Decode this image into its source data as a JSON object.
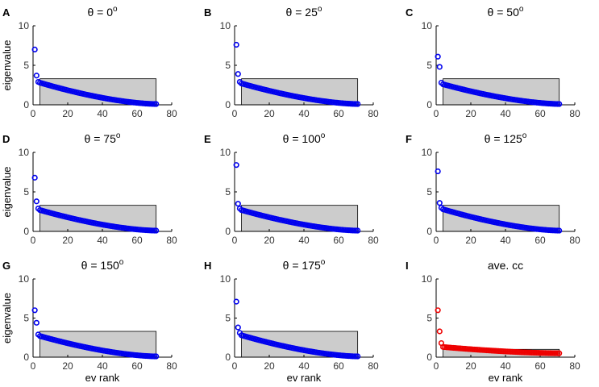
{
  "figure": {
    "ylabel": "eigenvalue",
    "xlabel": "ev rank"
  },
  "chart_data": [
    {
      "panel": "A",
      "type": "scatter",
      "title_symbol": "θ",
      "title_value": "0",
      "title_unit": "o",
      "title": "θ = 0°",
      "xlabel": "",
      "ylabel": "eigenvalue",
      "xlim": [
        0,
        80
      ],
      "ylim": [
        0,
        10
      ],
      "xticks": [
        "0",
        "20",
        "40",
        "60",
        "80"
      ],
      "yticks": [
        "0",
        "5",
        "10"
      ],
      "top_values": [
        7.0,
        3.7,
        2.9
      ],
      "bulk_start": 2.8,
      "bulk_end": 0.1,
      "n": 71,
      "marker_color": "#0000ee",
      "box": {
        "x0": 4,
        "x1": 71,
        "y0": 0,
        "y1": 3.3
      }
    },
    {
      "panel": "B",
      "type": "scatter",
      "title_symbol": "θ",
      "title_value": "25",
      "title_unit": "o",
      "title": "θ = 25°",
      "xlabel": "",
      "ylabel": "",
      "xlim": [
        0,
        80
      ],
      "ylim": [
        0,
        10
      ],
      "xticks": [
        "0",
        "20",
        "40",
        "60",
        "80"
      ],
      "yticks": [
        "0",
        "5",
        "10"
      ],
      "top_values": [
        7.6,
        3.9,
        2.9
      ],
      "bulk_start": 2.7,
      "bulk_end": 0.1,
      "n": 71,
      "marker_color": "#0000ee",
      "box": {
        "x0": 4,
        "x1": 71,
        "y0": 0,
        "y1": 3.3
      }
    },
    {
      "panel": "C",
      "type": "scatter",
      "title_symbol": "θ",
      "title_value": "50",
      "title_unit": "o",
      "title": "θ = 50°",
      "xlabel": "",
      "ylabel": "",
      "xlim": [
        0,
        80
      ],
      "ylim": [
        0,
        10
      ],
      "xticks": [
        "0",
        "20",
        "40",
        "60",
        "80"
      ],
      "yticks": [
        "0",
        "5",
        "10"
      ],
      "top_values": [
        6.1,
        4.8,
        2.8
      ],
      "bulk_start": 2.6,
      "bulk_end": 0.1,
      "n": 71,
      "marker_color": "#0000ee",
      "box": {
        "x0": 4,
        "x1": 71,
        "y0": 0,
        "y1": 3.3
      }
    },
    {
      "panel": "D",
      "type": "scatter",
      "title_symbol": "θ",
      "title_value": "75",
      "title_unit": "o",
      "title": "θ = 75°",
      "xlabel": "",
      "ylabel": "eigenvalue",
      "xlim": [
        0,
        80
      ],
      "ylim": [
        0,
        10
      ],
      "xticks": [
        "0",
        "20",
        "40",
        "60",
        "80"
      ],
      "yticks": [
        "0",
        "5",
        "10"
      ],
      "top_values": [
        6.8,
        3.8,
        2.9
      ],
      "bulk_start": 2.7,
      "bulk_end": 0.1,
      "n": 71,
      "marker_color": "#0000ee",
      "box": {
        "x0": 4,
        "x1": 71,
        "y0": 0,
        "y1": 3.3
      }
    },
    {
      "panel": "E",
      "type": "scatter",
      "title_symbol": "θ",
      "title_value": "100",
      "title_unit": "o",
      "title": "θ = 100°",
      "xlabel": "",
      "ylabel": "",
      "xlim": [
        0,
        80
      ],
      "ylim": [
        0,
        10
      ],
      "xticks": [
        "0",
        "20",
        "40",
        "60",
        "80"
      ],
      "yticks": [
        "0",
        "5",
        "10"
      ],
      "top_values": [
        8.4,
        3.5,
        2.9
      ],
      "bulk_start": 2.7,
      "bulk_end": 0.1,
      "n": 71,
      "marker_color": "#0000ee",
      "box": {
        "x0": 4,
        "x1": 71,
        "y0": 0,
        "y1": 3.3
      }
    },
    {
      "panel": "F",
      "type": "scatter",
      "title_symbol": "θ",
      "title_value": "125",
      "title_unit": "o",
      "title": "θ = 125°",
      "xlabel": "",
      "ylabel": "",
      "xlim": [
        0,
        80
      ],
      "ylim": [
        0,
        10
      ],
      "xticks": [
        "0",
        "20",
        "40",
        "60",
        "80"
      ],
      "yticks": [
        "0",
        "5",
        "10"
      ],
      "top_values": [
        7.6,
        3.6,
        3.0
      ],
      "bulk_start": 2.8,
      "bulk_end": 0.1,
      "n": 71,
      "marker_color": "#0000ee",
      "box": {
        "x0": 4,
        "x1": 71,
        "y0": 0,
        "y1": 3.3
      }
    },
    {
      "panel": "G",
      "type": "scatter",
      "title_symbol": "θ",
      "title_value": "150",
      "title_unit": "o",
      "title": "θ = 150°",
      "xlabel": "ev rank",
      "ylabel": "eigenvalue",
      "xlim": [
        0,
        80
      ],
      "ylim": [
        0,
        10
      ],
      "xticks": [
        "0",
        "20",
        "40",
        "60",
        "80"
      ],
      "yticks": [
        "0",
        "5",
        "10"
      ],
      "top_values": [
        6.0,
        4.4,
        2.9
      ],
      "bulk_start": 2.7,
      "bulk_end": 0.1,
      "n": 71,
      "marker_color": "#0000ee",
      "box": {
        "x0": 4,
        "x1": 71,
        "y0": 0,
        "y1": 3.3
      }
    },
    {
      "panel": "H",
      "type": "scatter",
      "title_symbol": "θ",
      "title_value": "175",
      "title_unit": "o",
      "title": "θ = 175°",
      "xlabel": "ev rank",
      "ylabel": "",
      "xlim": [
        0,
        80
      ],
      "ylim": [
        0,
        10
      ],
      "xticks": [
        "0",
        "20",
        "40",
        "60",
        "80"
      ],
      "yticks": [
        "0",
        "5",
        "10"
      ],
      "top_values": [
        7.1,
        3.8,
        3.1
      ],
      "bulk_start": 2.8,
      "bulk_end": 0.1,
      "n": 71,
      "marker_color": "#0000ee",
      "box": {
        "x0": 4,
        "x1": 71,
        "y0": 0,
        "y1": 3.3
      }
    },
    {
      "panel": "I",
      "type": "scatter",
      "title_text": "ave. cc",
      "title": "ave. cc",
      "xlabel": "ev rank",
      "ylabel": "",
      "xlim": [
        0,
        80
      ],
      "ylim": [
        0,
        10
      ],
      "xticks": [
        "0",
        "20",
        "40",
        "60",
        "80"
      ],
      "yticks": [
        "0",
        "5",
        "10"
      ],
      "top_values": [
        6.0,
        3.3,
        1.8
      ],
      "bulk_start": 1.3,
      "bulk_end": 0.5,
      "n": 71,
      "marker_color": "#ee0000",
      "box": {
        "x0": 4,
        "x1": 71,
        "y0": 0,
        "y1": 1.0
      }
    }
  ]
}
